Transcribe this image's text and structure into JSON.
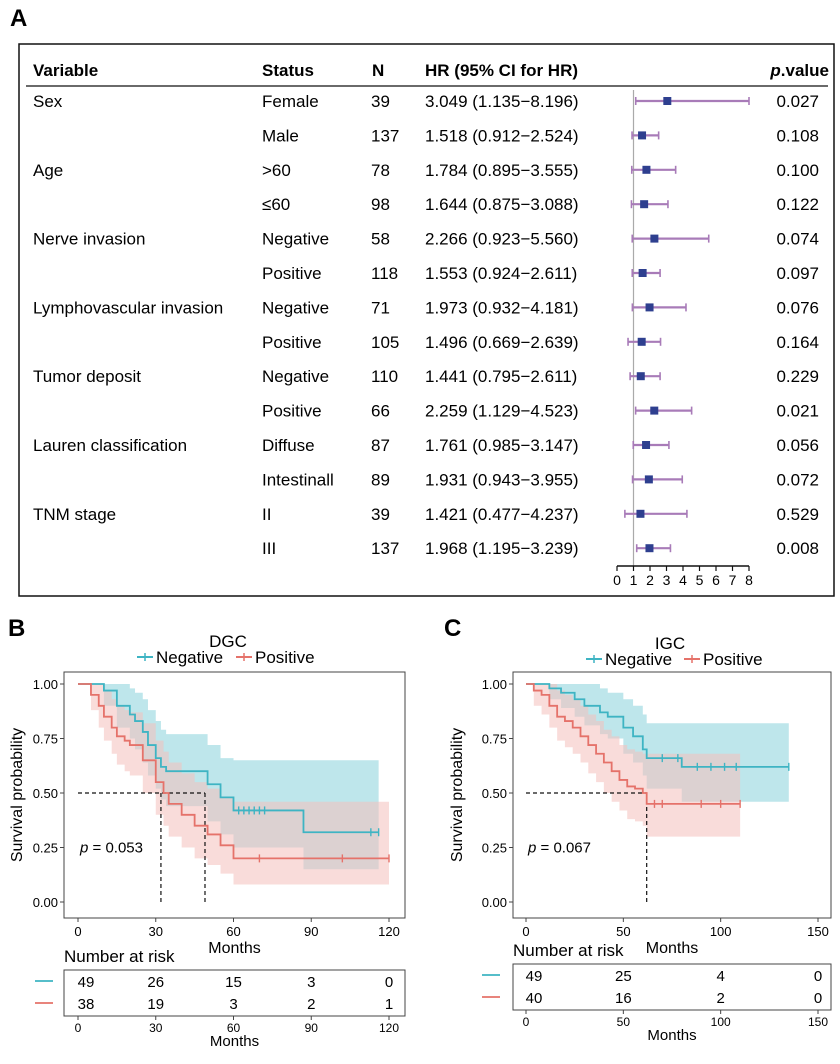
{
  "panel_labels": {
    "a": "A",
    "b": "B",
    "c": "C"
  },
  "forest": {
    "headers": {
      "variable": "Variable",
      "status": "Status",
      "n": "N",
      "hr": "HR (95% CI for HR)",
      "p_italic": "p",
      "p_rest": ".value"
    },
    "axis_ticks": [
      "0",
      "1",
      "2",
      "3",
      "4",
      "5",
      "6",
      "7",
      "8"
    ],
    "colors": {
      "square": "#2e3f8f",
      "ci": "#a87bb8",
      "refline": "#aaaaaa"
    },
    "rows": [
      {
        "variable": "Sex",
        "status": "Female",
        "n": "39",
        "hr_text": "3.049 (1.135−8.196)",
        "hr": 3.049,
        "lo": 1.135,
        "hi": 8.196,
        "p": "0.027"
      },
      {
        "variable": "",
        "status": "Male",
        "n": "137",
        "hr_text": "1.518 (0.912−2.524)",
        "hr": 1.518,
        "lo": 0.912,
        "hi": 2.524,
        "p": "0.108"
      },
      {
        "variable": "Age",
        "status": ">60",
        "n": "78",
        "hr_text": "1.784 (0.895−3.555)",
        "hr": 1.784,
        "lo": 0.895,
        "hi": 3.555,
        "p": "0.100"
      },
      {
        "variable": "",
        "status": "≤60",
        "n": "98",
        "hr_text": "1.644 (0.875−3.088)",
        "hr": 1.644,
        "lo": 0.875,
        "hi": 3.088,
        "p": "0.122"
      },
      {
        "variable": "Nerve invasion",
        "status": "Negative",
        "n": "58",
        "hr_text": "2.266 (0.923−5.560)",
        "hr": 2.266,
        "lo": 0.923,
        "hi": 5.56,
        "p": "0.074"
      },
      {
        "variable": "",
        "status": "Positive",
        "n": "118",
        "hr_text": "1.553 (0.924−2.611)",
        "hr": 1.553,
        "lo": 0.924,
        "hi": 2.611,
        "p": "0.097"
      },
      {
        "variable": "Lymphovascular invasion",
        "status": "Negative",
        "n": "71",
        "hr_text": "1.973 (0.932−4.181)",
        "hr": 1.973,
        "lo": 0.932,
        "hi": 4.181,
        "p": "0.076"
      },
      {
        "variable": "",
        "status": "Positive",
        "n": "105",
        "hr_text": "1.496 (0.669−2.639)",
        "hr": 1.496,
        "lo": 0.669,
        "hi": 2.639,
        "p": "0.164"
      },
      {
        "variable": "Tumor deposit",
        "status": "Negative",
        "n": "110",
        "hr_text": "1.441 (0.795−2.611)",
        "hr": 1.441,
        "lo": 0.795,
        "hi": 2.611,
        "p": "0.229"
      },
      {
        "variable": "",
        "status": "Positive",
        "n": "66",
        "hr_text": "2.259 (1.129−4.523)",
        "hr": 2.259,
        "lo": 1.129,
        "hi": 4.523,
        "p": "0.021"
      },
      {
        "variable": "Lauren classification",
        "status": "Diffuse",
        "n": "87",
        "hr_text": "1.761 (0.985−3.147)",
        "hr": 1.761,
        "lo": 0.985,
        "hi": 3.147,
        "p": "0.056"
      },
      {
        "variable": "",
        "status": "Intestinall",
        "n": "89",
        "hr_text": "1.931 (0.943−3.955)",
        "hr": 1.931,
        "lo": 0.943,
        "hi": 3.955,
        "p": "0.072"
      },
      {
        "variable": "TNM stage",
        "status": "II",
        "n": "39",
        "hr_text": "1.421 (0.477−4.237)",
        "hr": 1.421,
        "lo": 0.477,
        "hi": 4.237,
        "p": "0.529"
      },
      {
        "variable": "",
        "status": "III",
        "n": "137",
        "hr_text": "1.968 (1.195−3.239)",
        "hr": 1.968,
        "lo": 1.195,
        "hi": 3.239,
        "p": "0.008"
      }
    ]
  },
  "km_colors": {
    "negative": "#3eb4c3",
    "positive": "#e5726a",
    "neg_band": "#a8dde4",
    "pos_band": "#f4c0bb",
    "overlap": "#b5b3ab"
  },
  "chart_data": [
    {
      "type": "forest",
      "title": "",
      "xlim": [
        0,
        8
      ],
      "ref_line": 1,
      "xticks": [
        0,
        1,
        2,
        3,
        4,
        5,
        6,
        7,
        8
      ]
    },
    {
      "type": "line",
      "title": "DGC",
      "xlabel": "Months",
      "ylabel": "Survival probability",
      "xlim": [
        0,
        120
      ],
      "ylim": [
        0,
        1
      ],
      "xticks": [
        0,
        30,
        60,
        90,
        120
      ],
      "yticks": [
        0,
        0.25,
        0.5,
        0.75,
        1.0
      ],
      "ytick_labels": [
        "0.00",
        "0.25",
        "0.50",
        "0.75",
        "1.00"
      ],
      "legend": [
        "Negative",
        "Positive"
      ],
      "p_label": "p",
      "p_value": "= 0.053",
      "median_lines": [
        32,
        49
      ],
      "series": [
        {
          "name": "Negative",
          "x": [
            0,
            7,
            10,
            15,
            20,
            22,
            25,
            27,
            30,
            32,
            34,
            40,
            45,
            50,
            55,
            60,
            70,
            80,
            87,
            90,
            100,
            110,
            116
          ],
          "y": [
            1.0,
            1.0,
            0.97,
            0.9,
            0.86,
            0.83,
            0.78,
            0.72,
            0.66,
            0.62,
            0.6,
            0.6,
            0.6,
            0.54,
            0.48,
            0.42,
            0.42,
            0.42,
            0.32,
            0.32,
            0.32,
            0.32,
            0.32
          ],
          "lo": [
            1.0,
            1.0,
            0.9,
            0.8,
            0.75,
            0.7,
            0.64,
            0.58,
            0.52,
            0.47,
            0.44,
            0.44,
            0.44,
            0.37,
            0.31,
            0.25,
            0.25,
            0.25,
            0.15,
            0.15,
            0.15,
            0.15,
            0.15
          ],
          "hi": [
            1.0,
            1.0,
            1.0,
            1.0,
            0.98,
            0.96,
            0.93,
            0.88,
            0.83,
            0.79,
            0.77,
            0.77,
            0.77,
            0.72,
            0.66,
            0.65,
            0.65,
            0.65,
            0.65,
            0.65,
            0.65,
            0.65,
            0.65
          ],
          "censor_x": [
            62,
            64,
            66,
            68,
            70,
            72,
            113,
            116
          ]
        },
        {
          "name": "Positive",
          "x": [
            0,
            5,
            8,
            10,
            13,
            15,
            18,
            20,
            25,
            30,
            33,
            35,
            40,
            45,
            50,
            55,
            60,
            70,
            80,
            90,
            100,
            110,
            120
          ],
          "y": [
            1.0,
            0.95,
            0.9,
            0.85,
            0.8,
            0.76,
            0.74,
            0.72,
            0.65,
            0.55,
            0.5,
            0.45,
            0.4,
            0.35,
            0.31,
            0.26,
            0.2,
            0.2,
            0.2,
            0.2,
            0.2,
            0.2,
            0.2
          ],
          "lo": [
            1.0,
            0.88,
            0.8,
            0.74,
            0.68,
            0.63,
            0.6,
            0.58,
            0.5,
            0.4,
            0.35,
            0.3,
            0.25,
            0.2,
            0.17,
            0.13,
            0.08,
            0.08,
            0.08,
            0.08,
            0.08,
            0.08,
            0.08
          ],
          "hi": [
            1.0,
            1.0,
            1.0,
            0.97,
            0.93,
            0.9,
            0.88,
            0.87,
            0.82,
            0.74,
            0.69,
            0.64,
            0.59,
            0.55,
            0.52,
            0.48,
            0.46,
            0.46,
            0.46,
            0.46,
            0.46,
            0.46,
            0.46
          ],
          "censor_x": [
            70,
            102,
            120
          ]
        }
      ],
      "risk_table": {
        "title": "Number at risk",
        "xlabel": "Months",
        "times": [
          0,
          30,
          60,
          90,
          120
        ],
        "rows": [
          {
            "name": "Negative",
            "values": [
              "49",
              "26",
              "15",
              "3",
              "0"
            ]
          },
          {
            "name": "Positive",
            "values": [
              "38",
              "19",
              "3",
              "2",
              "1"
            ]
          }
        ]
      }
    },
    {
      "type": "line",
      "title": "IGC",
      "xlabel": "Months",
      "ylabel": "Survival probability",
      "xlim": [
        0,
        150
      ],
      "ylim": [
        0,
        1
      ],
      "xticks": [
        0,
        50,
        100,
        150
      ],
      "yticks": [
        0,
        0.25,
        0.5,
        0.75,
        1.0
      ],
      "ytick_labels": [
        "0.00",
        "0.25",
        "0.50",
        "0.75",
        "1.00"
      ],
      "legend": [
        "Negative",
        "Positive"
      ],
      "p_label": "p",
      "p_value": "= 0.067",
      "median_lines": [
        62
      ],
      "series": [
        {
          "name": "Negative",
          "x": [
            0,
            8,
            12,
            18,
            25,
            30,
            38,
            42,
            50,
            55,
            60,
            62,
            70,
            80,
            90,
            100,
            110,
            120,
            135
          ],
          "y": [
            1.0,
            1.0,
            0.98,
            0.96,
            0.93,
            0.9,
            0.87,
            0.85,
            0.8,
            0.76,
            0.7,
            0.66,
            0.66,
            0.62,
            0.62,
            0.62,
            0.62,
            0.62,
            0.62
          ],
          "lo": [
            1.0,
            1.0,
            0.93,
            0.89,
            0.85,
            0.81,
            0.77,
            0.75,
            0.68,
            0.64,
            0.58,
            0.52,
            0.52,
            0.46,
            0.46,
            0.46,
            0.46,
            0.46,
            0.46
          ],
          "hi": [
            1.0,
            1.0,
            1.0,
            1.0,
            1.0,
            1.0,
            0.98,
            0.96,
            0.93,
            0.9,
            0.86,
            0.82,
            0.82,
            0.82,
            0.82,
            0.82,
            0.82,
            0.82,
            0.82
          ],
          "censor_x": [
            70,
            78,
            88,
            95,
            102,
            108,
            135
          ]
        },
        {
          "name": "Positive",
          "x": [
            0,
            4,
            8,
            12,
            16,
            20,
            24,
            28,
            32,
            36,
            40,
            44,
            48,
            52,
            56,
            60,
            62,
            70,
            80,
            90,
            100,
            110
          ],
          "y": [
            1.0,
            0.97,
            0.95,
            0.9,
            0.85,
            0.83,
            0.8,
            0.76,
            0.72,
            0.68,
            0.64,
            0.6,
            0.56,
            0.53,
            0.52,
            0.5,
            0.45,
            0.45,
            0.45,
            0.45,
            0.45,
            0.45
          ],
          "lo": [
            1.0,
            0.9,
            0.86,
            0.8,
            0.74,
            0.71,
            0.68,
            0.64,
            0.59,
            0.55,
            0.5,
            0.46,
            0.42,
            0.38,
            0.37,
            0.35,
            0.3,
            0.3,
            0.3,
            0.3,
            0.3,
            0.3
          ],
          "hi": [
            1.0,
            1.0,
            1.0,
            1.0,
            0.97,
            0.95,
            0.93,
            0.9,
            0.86,
            0.83,
            0.79,
            0.76,
            0.72,
            0.7,
            0.69,
            0.68,
            0.68,
            0.68,
            0.68,
            0.68,
            0.68,
            0.68
          ],
          "censor_x": [
            66,
            70,
            90,
            100,
            110
          ]
        }
      ],
      "risk_table": {
        "title": "Number at risk",
        "xlabel": "Months",
        "times": [
          0,
          50,
          100,
          150
        ],
        "rows": [
          {
            "name": "Negative",
            "values": [
              "49",
              "25",
              "4",
              "0"
            ]
          },
          {
            "name": "Positive",
            "values": [
              "40",
              "16",
              "2",
              "0"
            ]
          }
        ]
      }
    }
  ]
}
